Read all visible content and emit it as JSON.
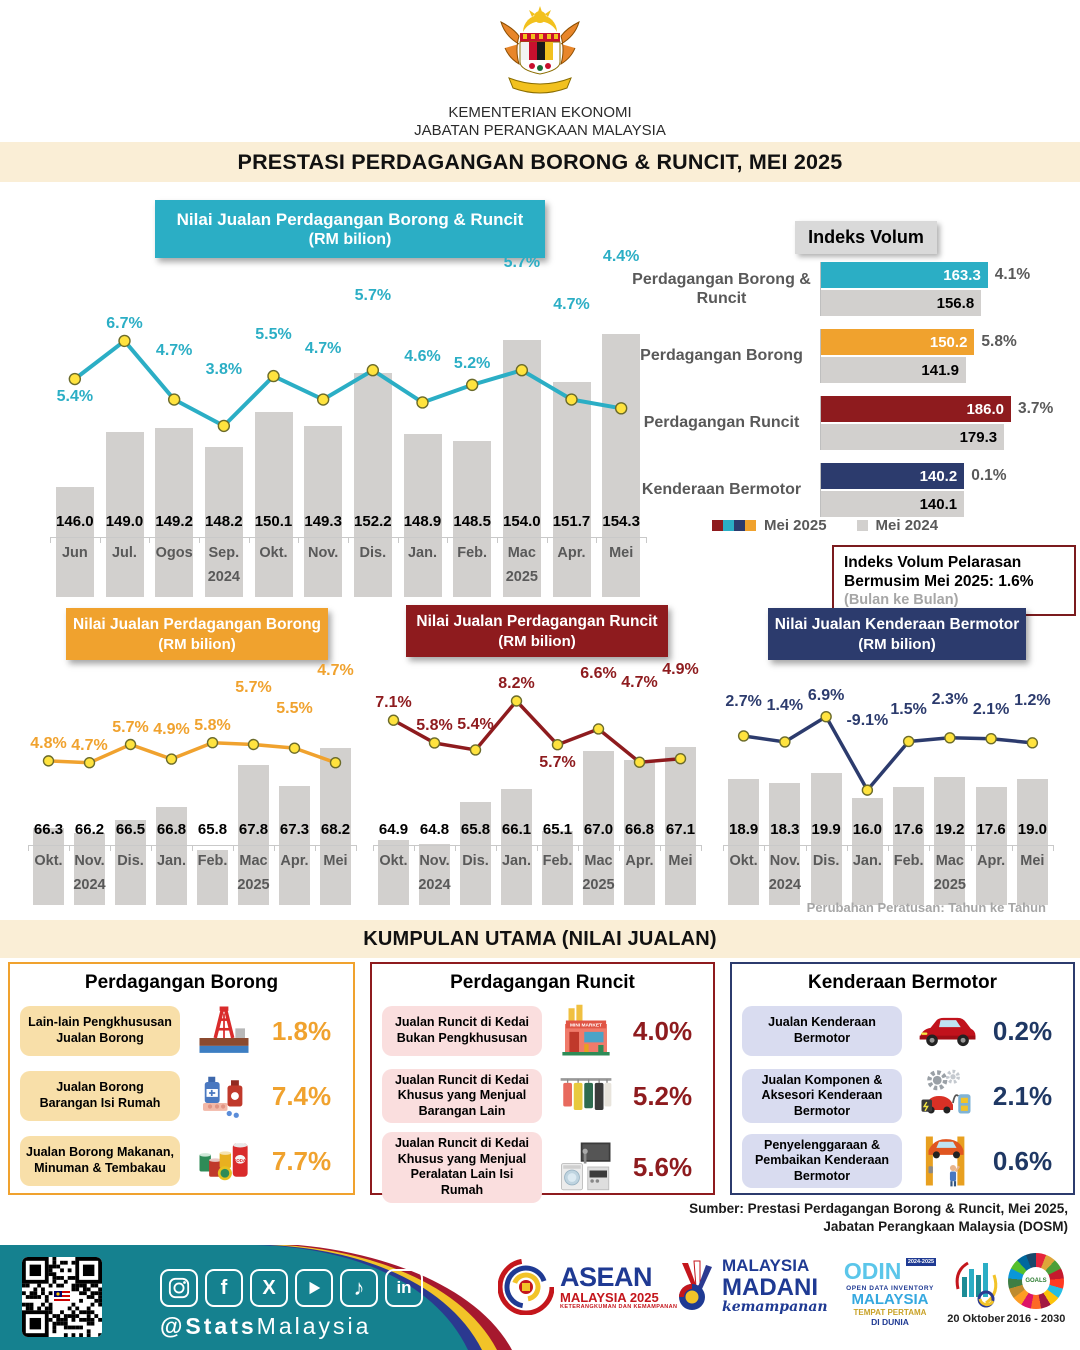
{
  "header": {
    "ministry": "KEMENTERIAN EKONOMI",
    "department": "JABATAN PERANGKAAN MALAYSIA",
    "title": "PRESTASI PERDAGANGAN BORONG & RUNCIT, MEI 2025"
  },
  "colors": {
    "teal": "#2BAEC5",
    "orange": "#F0A22E",
    "dark_red": "#8E1B1E",
    "navy": "#2C3B6D",
    "bar_gray": "#D2D0CE",
    "cream": "#FAEED6",
    "footer_teal": "#15818F",
    "marker_yellow": "#FFE33E",
    "legend_2025": [
      "#8E1B1E",
      "#2BAEC5",
      "#2C3B6D",
      "#F0A22E"
    ]
  },
  "chart_data": [
    {
      "id": "main",
      "type": "bar+line",
      "title": "Nilai Jualan Perdagangan Borong & Runcit",
      "subtitle": "(RM bilion)",
      "categories": [
        "Jun",
        "Jul.",
        "Ogos",
        "Sep.",
        "Okt.",
        "Nov.",
        "Dis.",
        "Jan.",
        "Feb.",
        "Mac",
        "Apr.",
        "Mei"
      ],
      "year_row": [
        "",
        "",
        "",
        "2024",
        "",
        "",
        "",
        "",
        "",
        "2025",
        "",
        ""
      ],
      "bar_values": [
        146.0,
        149.0,
        149.2,
        148.2,
        150.1,
        149.3,
        152.2,
        148.9,
        148.5,
        154.0,
        151.7,
        154.3
      ],
      "line_values_pct": [
        5.4,
        6.7,
        4.7,
        3.8,
        5.5,
        4.7,
        5.7,
        4.6,
        5.2,
        5.7,
        4.7,
        4.4
      ],
      "label_below": [
        0
      ],
      "accent": "#2BAEC5"
    },
    {
      "id": "volume_index",
      "type": "bar",
      "title": "Indeks Volum",
      "categories": [
        "Perdagangan Borong & Runcit",
        "Perdagangan Borong",
        "Perdagangan Runcit",
        "Kenderaan Bermotor"
      ],
      "series": [
        {
          "name": "Mei 2025",
          "values": [
            163.3,
            150.2,
            186.0,
            140.2
          ]
        },
        {
          "name": "Mei 2024",
          "values": [
            156.8,
            141.9,
            179.3,
            140.1
          ]
        }
      ],
      "pct_change": [
        "4.1%",
        "5.8%",
        "3.7%",
        "0.1%"
      ],
      "bar_colors": [
        "#2BAEC5",
        "#F0A22E",
        "#8E1B1E",
        "#2C3B6D"
      ],
      "xmax": 186
    },
    {
      "id": "borong",
      "type": "bar+line",
      "title": "Nilai Jualan Perdagangan Borong",
      "subtitle": "(RM bilion)",
      "categories": [
        "Okt.",
        "Nov.",
        "Dis.",
        "Jan.",
        "Feb.",
        "Mac",
        "Apr.",
        "Mei"
      ],
      "year_row": [
        "",
        "2024",
        "",
        "",
        "",
        "2025",
        "",
        ""
      ],
      "bar_values": [
        66.3,
        66.2,
        66.5,
        66.8,
        65.8,
        67.8,
        67.3,
        68.2
      ],
      "line_values_pct": [
        4.8,
        4.7,
        5.7,
        4.9,
        5.8,
        5.7,
        5.5,
        4.7
      ],
      "label_below": [],
      "accent": "#F0A22E"
    },
    {
      "id": "runcit",
      "type": "bar+line",
      "title": "Nilai Jualan Perdagangan Runcit",
      "subtitle": "(RM bilion)",
      "categories": [
        "Okt.",
        "Nov.",
        "Dis.",
        "Jan.",
        "Feb.",
        "Mac",
        "Apr.",
        "Mei"
      ],
      "year_row": [
        "",
        "2024",
        "",
        "",
        "",
        "2025",
        "",
        ""
      ],
      "bar_values": [
        64.9,
        64.8,
        65.8,
        66.1,
        65.1,
        67.0,
        66.8,
        67.1
      ],
      "line_values_pct": [
        7.1,
        5.8,
        5.4,
        8.2,
        5.7,
        6.6,
        4.7,
        4.9
      ],
      "label_below": [
        4
      ],
      "accent": "#8E1B1E"
    },
    {
      "id": "kenderaan",
      "type": "bar+line",
      "title": "Nilai Jualan Kenderaan Bermotor",
      "subtitle": "(RM bilion)",
      "categories": [
        "Okt.",
        "Nov.",
        "Dis.",
        "Jan.",
        "Feb.",
        "Mac",
        "Apr.",
        "Mei"
      ],
      "year_row": [
        "",
        "2024",
        "",
        "",
        "",
        "2025",
        "",
        ""
      ],
      "bar_values": [
        18.9,
        18.3,
        19.9,
        16.0,
        17.6,
        19.2,
        17.6,
        19.0
      ],
      "line_values_pct": [
        2.7,
        1.4,
        6.9,
        -9.1,
        1.5,
        2.3,
        2.1,
        1.2
      ],
      "label_below": [],
      "accent": "#2C3B6D"
    }
  ],
  "volume_note": {
    "line1": "Indeks Volum Pelarasan",
    "line2": "Bermusim Mei 2025: 1.6%",
    "line3": "(Bulan ke Bulan)"
  },
  "yoy_note": "Perubahan Peratusan: Tahun ke Tahun",
  "kumpulan": {
    "heading": "KUMPULAN UTAMA (NILAI JUALAN)",
    "panels": [
      {
        "title": "Perdagangan Borong",
        "accent": "#F0A22E",
        "pill_bg": "#F8DFA9",
        "items": [
          {
            "label": "Lain-lain Pengkhususan Jualan Borong",
            "icon": "oil-rig-icon",
            "value": "1.8%"
          },
          {
            "label": "Jualan Borong Barangan Isi Rumah",
            "icon": "household-goods-icon",
            "value": "7.4%"
          },
          {
            "label": "Jualan Borong Makanan, Minuman & Tembakau",
            "icon": "food-cans-icon",
            "value": "7.7%"
          }
        ]
      },
      {
        "title": "Perdagangan Runcit",
        "accent": "#8E1B1E",
        "pill_bg": "#FADEDE",
        "items": [
          {
            "label": "Jualan Runcit di Kedai Bukan Pengkhususan",
            "icon": "minimarket-icon",
            "value": "4.0%"
          },
          {
            "label": "Jualan Runcit di Kedai Khusus yang Menjual Barangan Lain",
            "icon": "clothing-icon",
            "value": "5.2%"
          },
          {
            "label": "Jualan Runcit di Kedai Khusus yang Menjual Peralatan Lain Isi Rumah",
            "icon": "appliances-icon",
            "value": "5.6%"
          }
        ]
      },
      {
        "title": "Kenderaan Bermotor",
        "accent": "#2C3B6D",
        "pill_bg": "#D9DCF0",
        "items": [
          {
            "label": "Jualan Kenderaan Bermotor",
            "icon": "car-icon",
            "value": "0.2%"
          },
          {
            "label": "Jualan Komponen & Aksesori Kenderaan Bermotor",
            "icon": "car-parts-icon",
            "value": "2.1%"
          },
          {
            "label": "Penyelenggaraan & Pembaikan Kenderaan Bermotor",
            "icon": "car-repair-icon",
            "value": "0.6%"
          }
        ]
      }
    ]
  },
  "source": {
    "line1": "Sumber: Prestasi Perdagangan Borong & Runcit, Mei 2025,",
    "line2": "Jabatan Perangkaan Malaysia (DOSM)"
  },
  "footer": {
    "handle_bold": "@Stats",
    "handle_rest": "Malaysia",
    "social": [
      "instagram",
      "facebook",
      "x",
      "youtube",
      "tiktok",
      "linkedin"
    ],
    "logos": {
      "asean": {
        "line1": "ASEAN",
        "line2": "MALAYSIA 2025",
        "line3": "KETERANGKUMAN DAN KEMAMPANAN"
      },
      "madani": {
        "line1": "MALAYSIA",
        "line2": "MADANI",
        "line3": "kemampanan"
      },
      "odin": {
        "line1": "ODIN",
        "badge": "2024-2025",
        "line2": "OPEN DATA INVENTORY",
        "line3": "MALAYSIA",
        "line4": "TEMPAT PERTAMA",
        "line5": "DI DUNIA"
      },
      "statsday": {
        "caption": "20 Oktober"
      },
      "sdg": {
        "center": "GOALS",
        "caption": "2016 - 2030"
      }
    }
  }
}
